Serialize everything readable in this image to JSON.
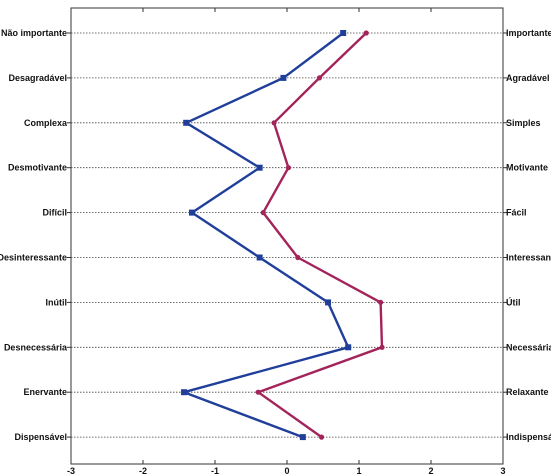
{
  "chart_data": {
    "type": "line",
    "title": "",
    "xlabel": "",
    "ylabel": "",
    "xlim": [
      -3,
      3
    ],
    "xticks": [
      -3,
      -2,
      -1,
      0,
      1,
      2,
      3
    ],
    "grid": "dotted horizontal lines",
    "legend": "none",
    "left_labels": [
      "Não importante",
      "Desagradável",
      "Complexa",
      "Desmotivante",
      "Difícil",
      "Desinteressante",
      "Inútil",
      "Desnecessária",
      "Enervante",
      "Dispensável"
    ],
    "right_labels": [
      "Importante",
      "Agradável",
      "Simples",
      "Motivante",
      "Fácil",
      "Interessante",
      "Útil",
      "Necessária",
      "Relaxante",
      "Indispensável"
    ],
    "series": [
      {
        "color": "#1f3f9a",
        "marker": "square",
        "values": [
          0.78,
          -0.05,
          -1.4,
          -0.38,
          -1.32,
          -0.38,
          0.57,
          0.85,
          -1.43,
          0.22
        ]
      },
      {
        "color": "#a3245a",
        "marker": "dot",
        "values": [
          1.1,
          0.45,
          -0.18,
          0.02,
          -0.33,
          0.15,
          1.3,
          1.32,
          -0.4,
          0.48
        ]
      }
    ]
  }
}
